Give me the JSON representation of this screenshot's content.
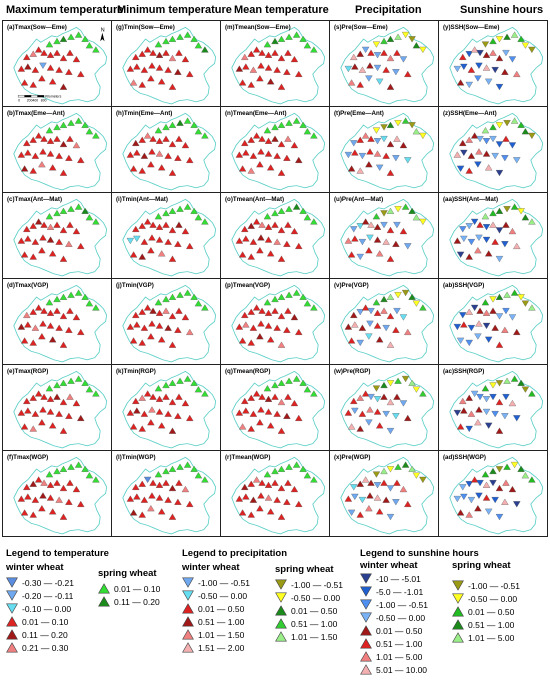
{
  "headers": [
    "Maximum temperature",
    "Minimum temperature",
    "Mean temperature",
    "Precipitation",
    "Sunshine hours"
  ],
  "panels": [
    [
      "(a)Tmax(Sow—Eme)",
      "(g)Tmin(Sow—Eme)",
      "(m)Tmean(Sow—Eme)",
      "(s)Pre(Sow—Eme)",
      "(y)SSH(Sow—Eme)"
    ],
    [
      "(b)Tmax(Eme—Ant)",
      "(h)Tmin(Eme—Ant)",
      "(n)Tmean(Eme—Ant)",
      "(t)Pre(Eme—Ant)",
      "(z)SSH(Eme—Ant)"
    ],
    [
      "(c)Tmax(Ant—Mat)",
      "(i)Tmin(Ant—Mat)",
      "(o)Tmean(Ant—Mat)",
      "(u)Pre(Ant—Mat)",
      "(aa)SSH(Ant—Mat)"
    ],
    [
      "(d)Tmax(VGP)",
      "(j)Tmin(VGP)",
      "(p)Tmean(VGP)",
      "(v)Pre(VGP)",
      "(ab)SSH(VGP)"
    ],
    [
      "(e)Tmax(RGP)",
      "(k)Tmin(RGP)",
      "(q)Tmean(RGP)",
      "(w)Pre(RGP)",
      "(ac)SSH(RGP)"
    ],
    [
      "(f)Tmax(WGP)",
      "(l)Tmin(WGP)",
      "(r)Tmean(WGP)",
      "(x)Pre(WGP)",
      "(ad)SSH(WGP)"
    ]
  ],
  "map_furniture": {
    "north_label": "N",
    "scale_ticks": [
      "0",
      "200400",
      "800"
    ],
    "scale_unit": "Kilometers"
  },
  "colors": {
    "boundary": "#5fd0c8",
    "t_neg_dark": "#5a8de0",
    "t_neg_mid": "#6fa8ef",
    "t_neg_light": "#66ddf0",
    "t_pos_red": "#dd2222",
    "t_pos_crimson": "#a01818",
    "t_pos_pink": "#f08080",
    "green_light": "#33dd33",
    "green_dark": "#1a8a1a",
    "yellow": "#ffff22",
    "olive": "#9a9a14"
  },
  "legend_temperature": {
    "title": "Legend to temperature",
    "winter_title": "winter wheat",
    "spring_title": "spring wheat",
    "winter": [
      {
        "label": "-0.30 — -0.21",
        "color": "#5a8de0",
        "dir": "down"
      },
      {
        "label": "-0.20 — -0.11",
        "color": "#6fa8ef",
        "dir": "down"
      },
      {
        "label": "-0.10 — 0.00",
        "color": "#66ddf0",
        "dir": "down"
      },
      {
        "label": "0.01 — 0.10",
        "color": "#dd2222",
        "dir": "up"
      },
      {
        "label": "0.11 — 0.20",
        "color": "#a01818",
        "dir": "up"
      },
      {
        "label": "0.21 — 0.30",
        "color": "#f08080",
        "dir": "up"
      }
    ],
    "spring": [
      {
        "label": "0.01 — 0.10",
        "color": "#33dd33",
        "dir": "up"
      },
      {
        "label": "0.11 — 0.20",
        "color": "#1a8a1a",
        "dir": "up"
      }
    ]
  },
  "legend_precipitation": {
    "title": "Legend to precipitation",
    "winter_title": "winter wheat",
    "spring_title": "spring wheat",
    "winter": [
      {
        "label": "-1.00 — -0.51",
        "color": "#6fa8ef",
        "dir": "down"
      },
      {
        "label": "-0.50 — 0.00",
        "color": "#66ddf0",
        "dir": "down"
      },
      {
        "label": "0.01 — 0.50",
        "color": "#dd2222",
        "dir": "up"
      },
      {
        "label": "0.51 — 1.00",
        "color": "#a01818",
        "dir": "up"
      },
      {
        "label": "1.01 — 1.50",
        "color": "#f08080",
        "dir": "up"
      },
      {
        "label": "1.51 — 2.00",
        "color": "#f4b0b0",
        "dir": "up"
      }
    ],
    "spring": [
      {
        "label": "-1.00 — -0.51",
        "color": "#9a9a14",
        "dir": "down"
      },
      {
        "label": "-0.50 — 0.00",
        "color": "#ffff22",
        "dir": "down"
      },
      {
        "label": "0.01 — 0.50",
        "color": "#1a8a1a",
        "dir": "up"
      },
      {
        "label": "0.51 — 1.00",
        "color": "#33cc33",
        "dir": "up"
      },
      {
        "label": "1.01 — 1.50",
        "color": "#99ee88",
        "dir": "up"
      }
    ]
  },
  "legend_sunshine": {
    "title": "Legend to sunshine hours",
    "winter_title": "winter wheat",
    "spring_title": "spring wheat",
    "winter": [
      {
        "label": "-10 — -5.01",
        "color": "#2a3f8f",
        "dir": "down"
      },
      {
        "label": "-5.0 — -1.01",
        "color": "#1f5fd0",
        "dir": "down"
      },
      {
        "label": "-1.00 — -0.51",
        "color": "#4f8ff0",
        "dir": "down"
      },
      {
        "label": "-0.50 — 0.00",
        "color": "#79b3f6",
        "dir": "down"
      },
      {
        "label": "0.01 — 0.50",
        "color": "#a01818",
        "dir": "up"
      },
      {
        "label": "0.51 — 1.00",
        "color": "#dd2222",
        "dir": "up"
      },
      {
        "label": "1.01 — 5.00",
        "color": "#f08080",
        "dir": "up"
      },
      {
        "label": "5.01 — 10.00",
        "color": "#f4b0b0",
        "dir": "up"
      }
    ],
    "spring": [
      {
        "label": "-1.00 — -0.51",
        "color": "#9a9a14",
        "dir": "down"
      },
      {
        "label": "-0.50 — 0.00",
        "color": "#ffff22",
        "dir": "down"
      },
      {
        "label": "0.01 — 0.50",
        "color": "#22bb22",
        "dir": "up"
      },
      {
        "label": "0.51 — 1.00",
        "color": "#1a8a1a",
        "dir": "up"
      },
      {
        "label": "1.01 — 5.00",
        "color": "#99ee88",
        "dir": "up"
      }
    ]
  }
}
